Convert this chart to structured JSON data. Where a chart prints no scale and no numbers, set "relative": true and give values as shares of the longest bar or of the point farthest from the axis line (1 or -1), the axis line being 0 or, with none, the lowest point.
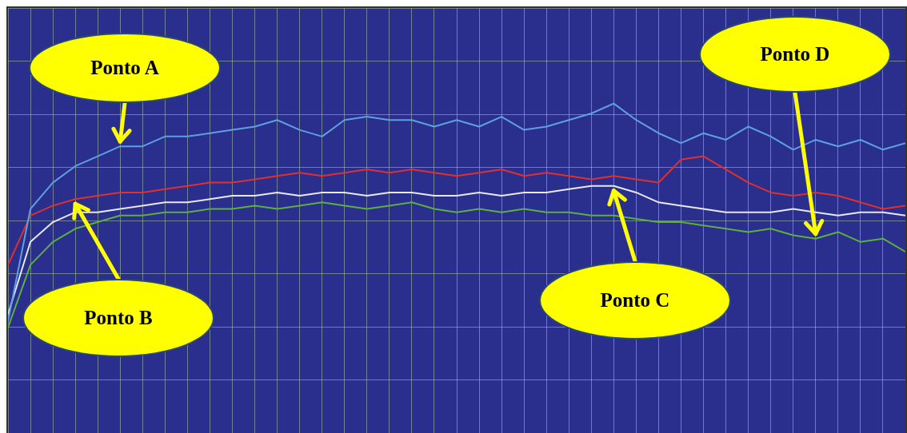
{
  "chart_data": {
    "type": "line",
    "relative": true,
    "grid": true,
    "marker": "none",
    "line_style": "solid",
    "categories": [
      null,
      null,
      null,
      null,
      null,
      null,
      null,
      null,
      null,
      null,
      null,
      null,
      null,
      null,
      null,
      null,
      null,
      null,
      null,
      null,
      null,
      null,
      null,
      null,
      null,
      null,
      null,
      null,
      null,
      null,
      null,
      null,
      null,
      null,
      null,
      null,
      null,
      null,
      null,
      null,
      null
    ],
    "series": [
      {
        "color": "#5fa0e0",
        "values": [
          0.34,
          0.68,
          0.76,
          0.81,
          0.84,
          0.87,
          0.87,
          0.9,
          0.9,
          0.91,
          0.92,
          0.93,
          0.95,
          0.92,
          0.9,
          0.95,
          0.96,
          0.95,
          0.95,
          0.93,
          0.95,
          0.93,
          0.96,
          0.92,
          0.93,
          0.95,
          0.97,
          1.0,
          0.95,
          0.91,
          0.88,
          0.91,
          0.89,
          0.93,
          0.9,
          0.86,
          0.89,
          0.87,
          0.89,
          0.86,
          0.88
        ]
      },
      {
        "color": "#e03030",
        "values": [
          0.51,
          0.66,
          0.69,
          0.71,
          0.72,
          0.73,
          0.73,
          0.74,
          0.75,
          0.76,
          0.76,
          0.77,
          0.78,
          0.79,
          0.78,
          0.79,
          0.8,
          0.79,
          0.8,
          0.79,
          0.78,
          0.79,
          0.8,
          0.78,
          0.79,
          0.78,
          0.77,
          0.78,
          0.77,
          0.76,
          0.83,
          0.84,
          0.8,
          0.76,
          0.73,
          0.72,
          0.73,
          0.72,
          0.7,
          0.68,
          0.69
        ]
      },
      {
        "color": "#e8e8f0",
        "values": [
          0.36,
          0.58,
          0.64,
          0.67,
          0.67,
          0.68,
          0.69,
          0.7,
          0.7,
          0.71,
          0.72,
          0.72,
          0.73,
          0.72,
          0.73,
          0.73,
          0.72,
          0.73,
          0.73,
          0.72,
          0.72,
          0.73,
          0.72,
          0.73,
          0.73,
          0.74,
          0.75,
          0.75,
          0.73,
          0.7,
          0.69,
          0.68,
          0.67,
          0.67,
          0.67,
          0.68,
          0.67,
          0.66,
          0.67,
          0.67,
          0.66
        ]
      },
      {
        "color": "#5cb040",
        "values": [
          0.32,
          0.51,
          0.58,
          0.62,
          0.64,
          0.66,
          0.66,
          0.67,
          0.67,
          0.68,
          0.68,
          0.69,
          0.68,
          0.69,
          0.7,
          0.69,
          0.68,
          0.69,
          0.7,
          0.68,
          0.67,
          0.68,
          0.67,
          0.68,
          0.67,
          0.67,
          0.66,
          0.66,
          0.65,
          0.64,
          0.64,
          0.63,
          0.62,
          0.61,
          0.62,
          0.6,
          0.59,
          0.61,
          0.58,
          0.59,
          0.55
        ]
      }
    ],
    "annotations": [
      "Ponto A",
      "Ponto B",
      "Ponto C",
      "Ponto D"
    ]
  }
}
